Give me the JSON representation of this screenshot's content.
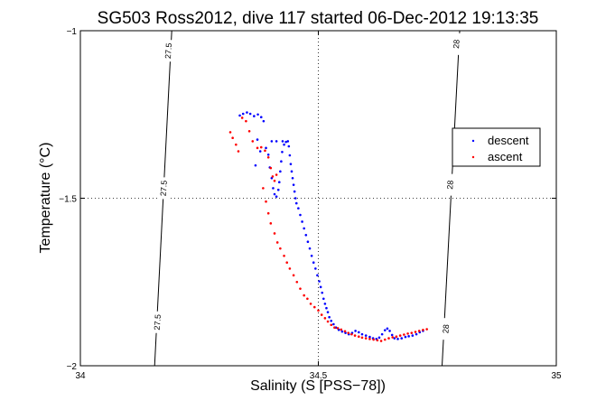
{
  "chart_data": {
    "type": "scatter",
    "title": "SG503 Ross2012, dive 117 started 06-Dec-2012 19:13:35",
    "xlabel": "Salinity (S [PSS−78])",
    "ylabel": "Temperature (°C)",
    "xlim": [
      34,
      35
    ],
    "ylim": [
      -2,
      -1
    ],
    "xticks": [
      34,
      34.5,
      35
    ],
    "yticks": [
      -2,
      -1.5,
      -1
    ],
    "xtick_labels": [
      "34",
      "34.5",
      "35"
    ],
    "ytick_labels": [
      "−2",
      "−1.5",
      "−1"
    ],
    "grid": true,
    "legend_position": "upper-right",
    "colors": {
      "descent": "#0000ff",
      "ascent": "#ff0000",
      "contour": "#000000"
    },
    "contours": [
      {
        "label": "27.5",
        "start": [
          34.156,
          -2.0
        ],
        "end": [
          34.192,
          -1.0
        ],
        "label_positions": [
          [
            34.185,
            -1.06
          ],
          [
            34.175,
            -1.47
          ],
          [
            34.162,
            -1.87
          ]
        ]
      },
      {
        "label": "28",
        "start": [
          34.76,
          -2.0
        ],
        "end": [
          34.797,
          -1.0
        ],
        "label_positions": [
          [
            34.79,
            -1.04
          ],
          [
            34.777,
            -1.46
          ],
          [
            34.768,
            -1.89
          ]
        ]
      }
    ],
    "series": [
      {
        "name": "descent",
        "points": [
          [
            34.335,
            -1.253
          ],
          [
            34.342,
            -1.248
          ],
          [
            34.35,
            -1.244
          ],
          [
            34.357,
            -1.248
          ],
          [
            34.365,
            -1.255
          ],
          [
            34.373,
            -1.25
          ],
          [
            34.38,
            -1.258
          ],
          [
            34.385,
            -1.27
          ],
          [
            34.372,
            -1.325
          ],
          [
            34.378,
            -1.36
          ],
          [
            34.368,
            -1.402
          ],
          [
            34.39,
            -1.35
          ],
          [
            34.402,
            -1.33
          ],
          [
            34.412,
            -1.33
          ],
          [
            34.425,
            -1.33
          ],
          [
            34.395,
            -1.37
          ],
          [
            34.398,
            -1.408
          ],
          [
            34.402,
            -1.44
          ],
          [
            34.405,
            -1.47
          ],
          [
            34.408,
            -1.488
          ],
          [
            34.412,
            -1.495
          ],
          [
            34.416,
            -1.475
          ],
          [
            34.418,
            -1.452
          ],
          [
            34.42,
            -1.42
          ],
          [
            34.422,
            -1.39
          ],
          [
            34.424,
            -1.362
          ],
          [
            34.428,
            -1.34
          ],
          [
            34.432,
            -1.332
          ],
          [
            34.436,
            -1.33
          ],
          [
            34.438,
            -1.345
          ],
          [
            34.44,
            -1.372
          ],
          [
            34.442,
            -1.398
          ],
          [
            34.444,
            -1.42
          ],
          [
            34.446,
            -1.44
          ],
          [
            34.448,
            -1.46
          ],
          [
            34.45,
            -1.48
          ],
          [
            34.452,
            -1.5
          ],
          [
            34.454,
            -1.515
          ],
          [
            34.458,
            -1.53
          ],
          [
            34.462,
            -1.55
          ],
          [
            34.466,
            -1.57
          ],
          [
            34.47,
            -1.59
          ],
          [
            34.474,
            -1.61
          ],
          [
            34.478,
            -1.63
          ],
          [
            34.482,
            -1.65
          ],
          [
            34.486,
            -1.672
          ],
          [
            34.49,
            -1.692
          ],
          [
            34.494,
            -1.71
          ],
          [
            34.498,
            -1.73
          ],
          [
            34.502,
            -1.748
          ],
          [
            34.505,
            -1.765
          ],
          [
            34.508,
            -1.782
          ],
          [
            34.511,
            -1.8
          ],
          [
            34.514,
            -1.815
          ],
          [
            34.517,
            -1.828
          ],
          [
            34.52,
            -1.84
          ],
          [
            34.523,
            -1.855
          ],
          [
            34.527,
            -1.866
          ],
          [
            34.532,
            -1.876
          ],
          [
            34.537,
            -1.886
          ],
          [
            34.543,
            -1.893
          ],
          [
            34.55,
            -1.898
          ],
          [
            34.557,
            -1.902
          ],
          [
            34.564,
            -1.906
          ],
          [
            34.571,
            -1.902
          ],
          [
            34.578,
            -1.896
          ],
          [
            34.585,
            -1.9
          ],
          [
            34.592,
            -1.906
          ],
          [
            34.6,
            -1.91
          ],
          [
            34.608,
            -1.914
          ],
          [
            34.615,
            -1.918
          ],
          [
            34.622,
            -1.92
          ],
          [
            34.628,
            -1.916
          ],
          [
            34.634,
            -1.906
          ],
          [
            34.64,
            -1.894
          ],
          [
            34.645,
            -1.889
          ],
          [
            34.65,
            -1.896
          ],
          [
            34.655,
            -1.908
          ],
          [
            34.66,
            -1.918
          ],
          [
            34.667,
            -1.92
          ],
          [
            34.675,
            -1.918
          ],
          [
            34.683,
            -1.914
          ],
          [
            34.69,
            -1.912
          ],
          [
            34.698,
            -1.91
          ],
          [
            34.706,
            -1.906
          ],
          [
            34.713,
            -1.9
          ],
          [
            34.72,
            -1.896
          ]
        ]
      },
      {
        "name": "ascent",
        "points": [
          [
            34.315,
            -1.303
          ],
          [
            34.32,
            -1.32
          ],
          [
            34.327,
            -1.34
          ],
          [
            34.332,
            -1.36
          ],
          [
            34.34,
            -1.26
          ],
          [
            34.348,
            -1.27
          ],
          [
            34.355,
            -1.3
          ],
          [
            34.362,
            -1.33
          ],
          [
            34.372,
            -1.35
          ],
          [
            34.38,
            -1.348
          ],
          [
            34.388,
            -1.358
          ],
          [
            34.395,
            -1.378
          ],
          [
            34.4,
            -1.41
          ],
          [
            34.404,
            -1.435
          ],
          [
            34.408,
            -1.448
          ],
          [
            34.412,
            -1.43
          ],
          [
            34.384,
            -1.47
          ],
          [
            34.39,
            -1.51
          ],
          [
            34.395,
            -1.545
          ],
          [
            34.4,
            -1.575
          ],
          [
            34.408,
            -1.605
          ],
          [
            34.414,
            -1.632
          ],
          [
            34.42,
            -1.65
          ],
          [
            34.428,
            -1.672
          ],
          [
            34.434,
            -1.692
          ],
          [
            34.44,
            -1.71
          ],
          [
            34.448,
            -1.73
          ],
          [
            34.455,
            -1.75
          ],
          [
            34.462,
            -1.77
          ],
          [
            34.47,
            -1.79
          ],
          [
            34.477,
            -1.8
          ],
          [
            34.484,
            -1.815
          ],
          [
            34.492,
            -1.825
          ],
          [
            34.5,
            -1.835
          ],
          [
            34.507,
            -1.848
          ],
          [
            34.514,
            -1.858
          ],
          [
            34.52,
            -1.868
          ],
          [
            34.527,
            -1.878
          ],
          [
            34.534,
            -1.886
          ],
          [
            34.541,
            -1.888
          ],
          [
            34.548,
            -1.892
          ],
          [
            34.556,
            -1.897
          ],
          [
            34.563,
            -1.902
          ],
          [
            34.57,
            -1.906
          ],
          [
            34.577,
            -1.91
          ],
          [
            34.585,
            -1.913
          ],
          [
            34.592,
            -1.916
          ],
          [
            34.6,
            -1.918
          ],
          [
            34.608,
            -1.92
          ],
          [
            34.616,
            -1.922
          ],
          [
            34.624,
            -1.924
          ],
          [
            34.632,
            -1.926
          ],
          [
            34.64,
            -1.922
          ],
          [
            34.648,
            -1.918
          ],
          [
            34.656,
            -1.915
          ],
          [
            34.664,
            -1.913
          ],
          [
            34.672,
            -1.91
          ],
          [
            34.68,
            -1.907
          ],
          [
            34.688,
            -1.904
          ],
          [
            34.696,
            -1.902
          ],
          [
            34.704,
            -1.899
          ],
          [
            34.712,
            -1.896
          ],
          [
            34.72,
            -1.893
          ],
          [
            34.728,
            -1.891
          ]
        ]
      }
    ]
  }
}
